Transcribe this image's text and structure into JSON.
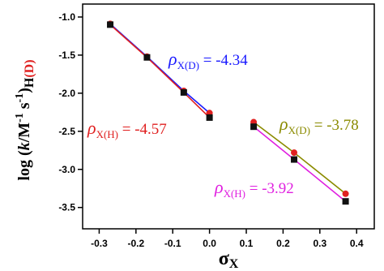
{
  "chart_data": {
    "type": "scatter-line",
    "x_label": {
      "symbol": "σ",
      "subscript": "X"
    },
    "y_label": {
      "open": "log (",
      "italic": "k",
      "unit1": "/M",
      "exp1": "-1",
      "unit2": " s",
      "exp2": "-1",
      "close": ")",
      "sub": "H",
      "sub_colored": "(D)",
      "sub_colored_color": "#e02020"
    },
    "xlim": [
      -0.345,
      0.448
    ],
    "ylim": [
      -3.78,
      -0.83
    ],
    "xticks": [
      -0.3,
      -0.2,
      -0.1,
      {
        "value": 0,
        "label": "0.0"
      },
      0.1,
      0.2,
      0.3,
      0.4
    ],
    "yticks": [
      {
        "value": -1,
        "label": "-1.0"
      },
      -1.5,
      {
        "value": -2,
        "label": "-2.0"
      },
      -2.5,
      {
        "value": -3,
        "label": "-3.0"
      },
      -3.5
    ],
    "series": [
      {
        "color": "#1a1aff",
        "marker": "circle",
        "marker_color": "#e02020",
        "x": [
          -0.27,
          -0.17,
          -0.07,
          0
        ],
        "values": [
          -1.09,
          -1.52,
          -1.97,
          -2.26
        ],
        "annotation": {
          "symbol": "ρ",
          "subscript": "X(D)",
          "text": " = -4.34"
        }
      },
      {
        "color": "#e02020",
        "marker": "square",
        "marker_color": "#111111",
        "x": [
          -0.27,
          -0.17,
          -0.07,
          0
        ],
        "values": [
          -1.1,
          -1.53,
          -1.99,
          -2.32
        ],
        "annotation": {
          "symbol": "ρ",
          "subscript": "X(H)",
          "text": " = -4.57"
        }
      },
      {
        "color": "#8b8b00",
        "marker": "circle",
        "marker_color": "#e02020",
        "x": [
          0.12,
          0.23,
          0.37
        ],
        "values": [
          -2.38,
          -2.78,
          -3.32
        ],
        "annotation": {
          "symbol": "ρ",
          "subscript": "X(D)",
          "text": " = -3.78"
        }
      },
      {
        "color": "#e020e0",
        "marker": "square",
        "marker_color": "#111111",
        "x": [
          0.12,
          0.23,
          0.37
        ],
        "values": [
          -2.44,
          -2.87,
          -3.42
        ],
        "annotation": {
          "symbol": "ρ",
          "subscript": "X(H)",
          "text": " = -3.92"
        }
      }
    ]
  }
}
